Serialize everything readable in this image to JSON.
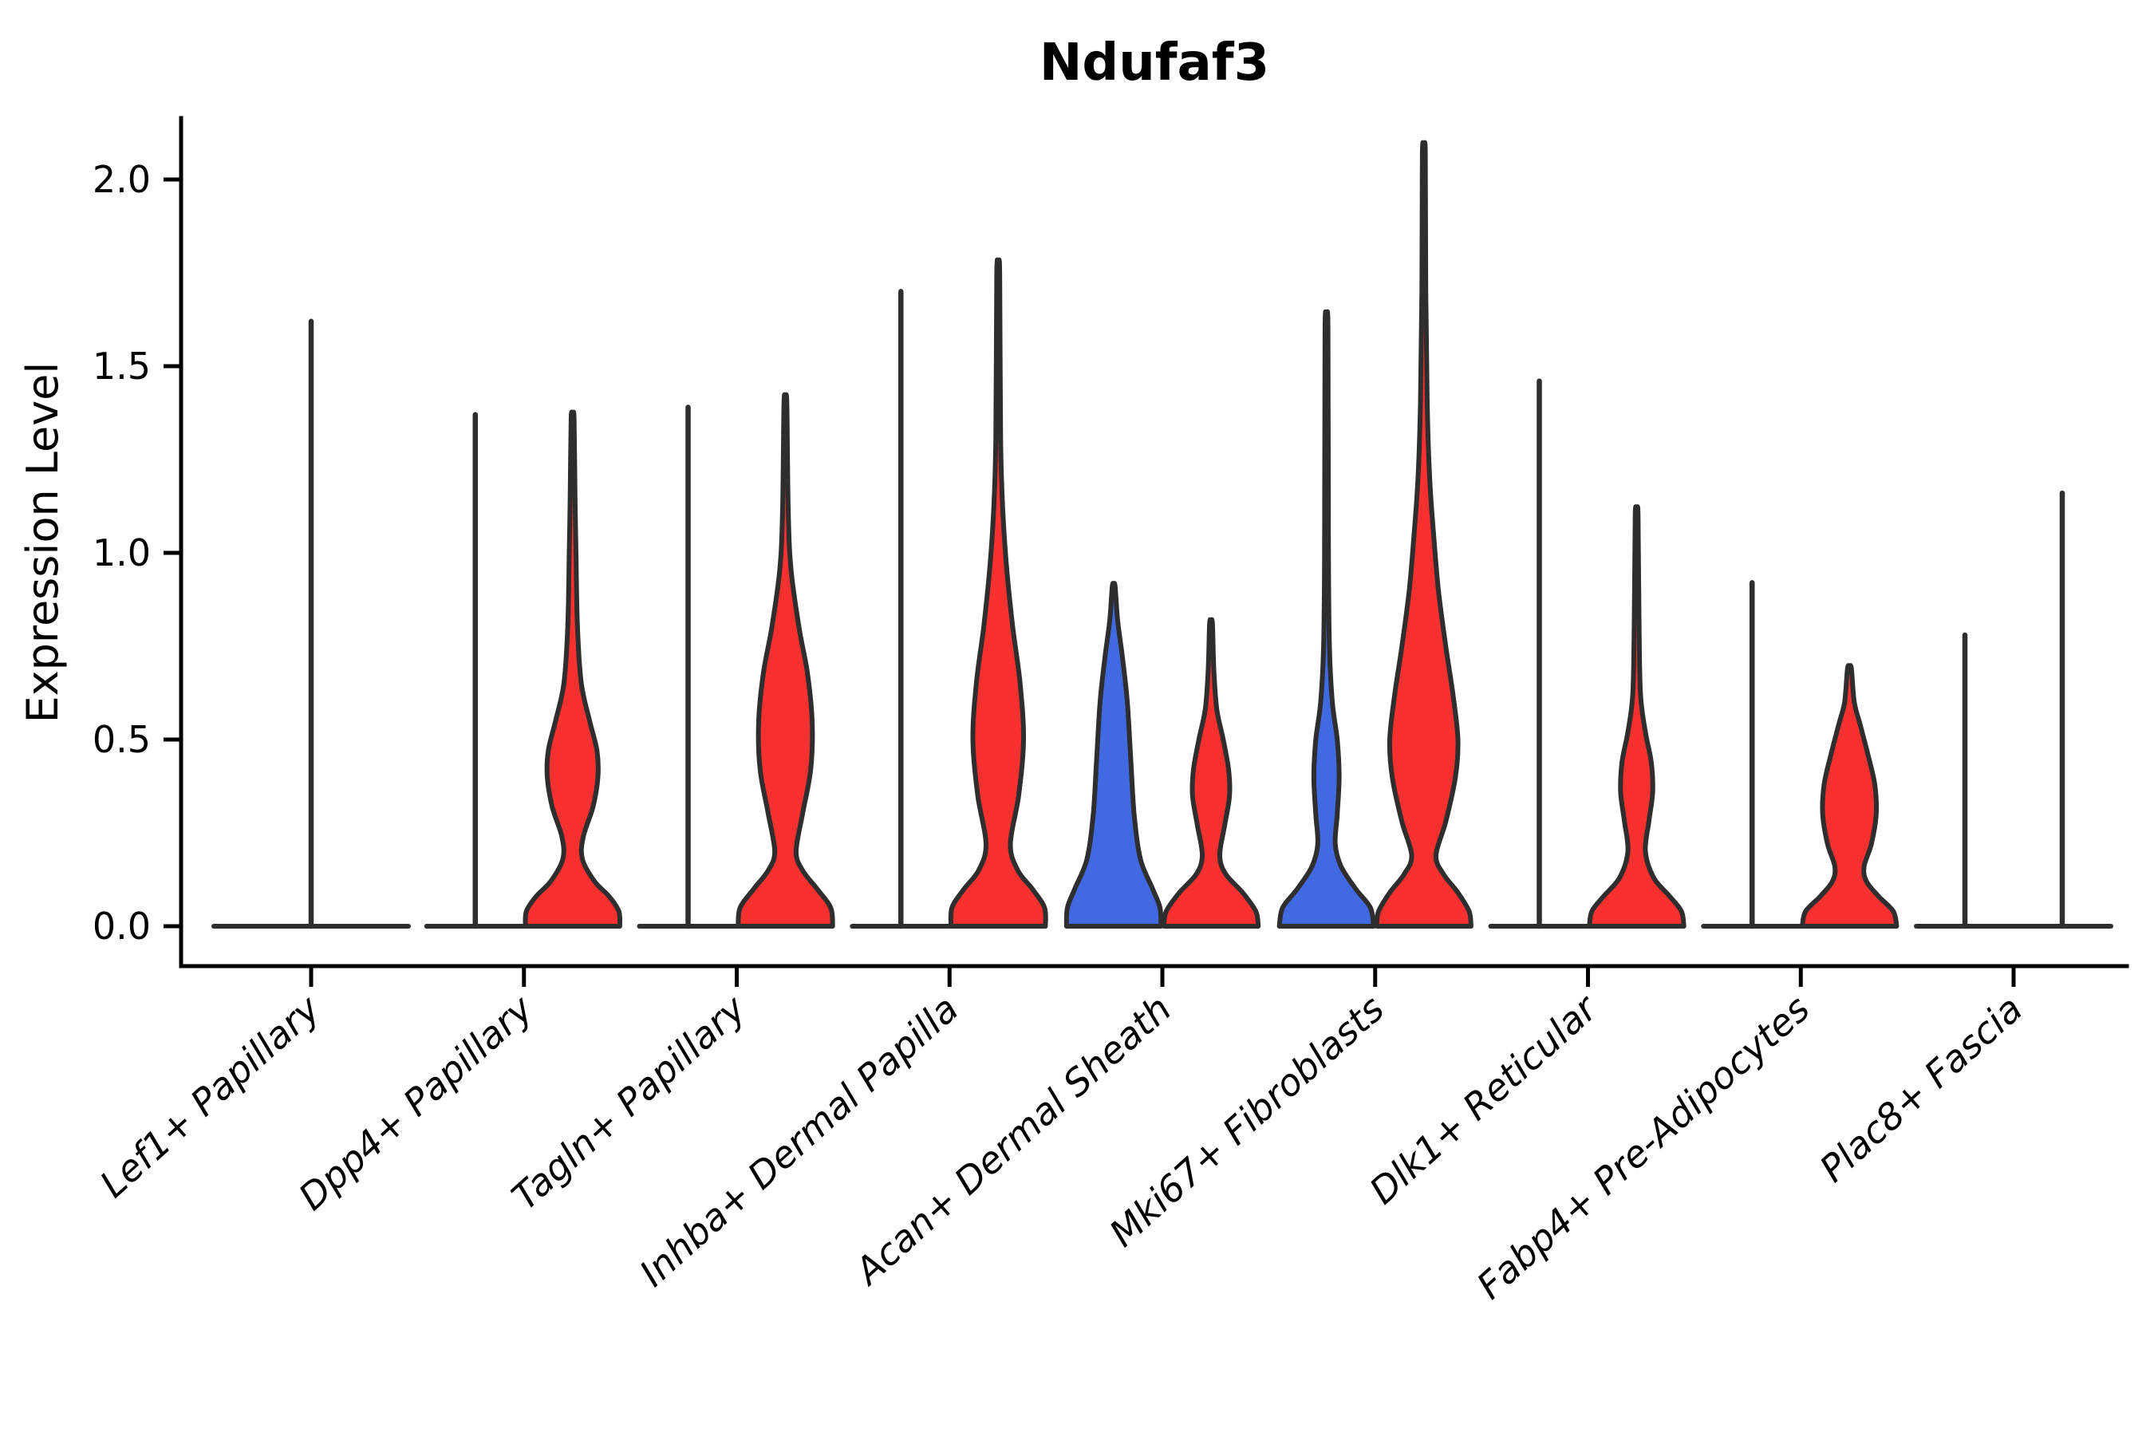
{
  "title": "Ndufaf3",
  "ylabel": "Expression Level",
  "colors": {
    "red": "#F93030",
    "blue": "#4169E1",
    "outline": "#2E2E2E",
    "axis": "#000000"
  },
  "chart_data": {
    "type": "violin",
    "title": "Ndufaf3",
    "xlabel": "",
    "ylabel": "Expression Level",
    "ylim": [
      -0.15,
      2.17
    ],
    "yticks": [
      0.0,
      0.5,
      1.0,
      1.5,
      2.0
    ],
    "ytick_labels": [
      "0.0",
      "0.5",
      "1.0",
      "1.5",
      "2.0"
    ],
    "grid": false,
    "legend": "none",
    "categories": [
      "Lef1+ Papillary",
      "Dpp4+ Papillary",
      "Tagln+ Papillary",
      "Inhba+ Dermal Papilla",
      "Acan+ Dermal Sheath",
      "Mki67+ Fibroblasts",
      "Dlk1+ Reticular",
      "Fabp4+ Pre-Adipocytes",
      "Plac8+ Fascia"
    ],
    "series_note": "Two dodged violins per category (no legend shown): left violin blue, right violin red. Violins drawn as a flat line at 0 with a thin vertical spike when nearly all values are 0. Lef1+ Papillary shows a single full-width violin centered on the tick.",
    "violins": [
      {
        "category": "Lef1+ Papillary",
        "side": "single",
        "group": "single",
        "color": "none",
        "max": 1.62,
        "kind": "spike"
      },
      {
        "category": "Dpp4+ Papillary",
        "side": "left",
        "group": "blue",
        "color": "none",
        "max": 1.37,
        "kind": "spike"
      },
      {
        "category": "Dpp4+ Papillary",
        "side": "right",
        "group": "red",
        "color": "red",
        "max": 1.36,
        "kind": "shape",
        "profile": [
          [
            0.0,
            0.97
          ],
          [
            0.04,
            0.95
          ],
          [
            0.08,
            0.75
          ],
          [
            0.12,
            0.45
          ],
          [
            0.18,
            0.2
          ],
          [
            0.24,
            0.22
          ],
          [
            0.32,
            0.42
          ],
          [
            0.4,
            0.52
          ],
          [
            0.47,
            0.5
          ],
          [
            0.55,
            0.35
          ],
          [
            0.65,
            0.18
          ],
          [
            0.8,
            0.1
          ],
          [
            1.0,
            0.07
          ],
          [
            1.15,
            0.05
          ],
          [
            1.36,
            0.03
          ]
        ]
      },
      {
        "category": "Tagln+ Papillary",
        "side": "left",
        "group": "blue",
        "color": "none",
        "max": 1.39,
        "kind": "spike"
      },
      {
        "category": "Tagln+ Papillary",
        "side": "right",
        "group": "red",
        "color": "red",
        "max": 1.4,
        "kind": "shape",
        "profile": [
          [
            0.0,
            0.97
          ],
          [
            0.05,
            0.93
          ],
          [
            0.1,
            0.65
          ],
          [
            0.15,
            0.35
          ],
          [
            0.2,
            0.22
          ],
          [
            0.3,
            0.35
          ],
          [
            0.42,
            0.52
          ],
          [
            0.55,
            0.55
          ],
          [
            0.68,
            0.45
          ],
          [
            0.8,
            0.28
          ],
          [
            0.95,
            0.12
          ],
          [
            1.1,
            0.06
          ],
          [
            1.4,
            0.03
          ]
        ]
      },
      {
        "category": "Inhba+ Dermal Papilla",
        "side": "left",
        "group": "blue",
        "color": "none",
        "max": 1.7,
        "kind": "spike"
      },
      {
        "category": "Inhba+ Dermal Papilla",
        "side": "right",
        "group": "red",
        "color": "red",
        "max": 1.75,
        "kind": "shape",
        "profile": [
          [
            0.0,
            0.97
          ],
          [
            0.05,
            0.95
          ],
          [
            0.1,
            0.7
          ],
          [
            0.15,
            0.4
          ],
          [
            0.22,
            0.25
          ],
          [
            0.35,
            0.42
          ],
          [
            0.5,
            0.52
          ],
          [
            0.65,
            0.45
          ],
          [
            0.8,
            0.3
          ],
          [
            0.95,
            0.18
          ],
          [
            1.1,
            0.1
          ],
          [
            1.3,
            0.05
          ],
          [
            1.75,
            0.03
          ]
        ]
      },
      {
        "category": "Acan+ Dermal Sheath",
        "side": "left",
        "group": "blue",
        "color": "blue",
        "max": 0.91,
        "kind": "shape",
        "profile": [
          [
            0.0,
            0.97
          ],
          [
            0.05,
            0.95
          ],
          [
            0.1,
            0.8
          ],
          [
            0.18,
            0.55
          ],
          [
            0.3,
            0.42
          ],
          [
            0.45,
            0.35
          ],
          [
            0.6,
            0.28
          ],
          [
            0.72,
            0.18
          ],
          [
            0.82,
            0.08
          ],
          [
            0.91,
            0.03
          ]
        ]
      },
      {
        "category": "Acan+ Dermal Sheath",
        "side": "right",
        "group": "red",
        "color": "red",
        "max": 0.81,
        "kind": "shape",
        "profile": [
          [
            0.0,
            0.97
          ],
          [
            0.04,
            0.92
          ],
          [
            0.09,
            0.65
          ],
          [
            0.14,
            0.3
          ],
          [
            0.19,
            0.18
          ],
          [
            0.27,
            0.28
          ],
          [
            0.35,
            0.38
          ],
          [
            0.42,
            0.36
          ],
          [
            0.5,
            0.25
          ],
          [
            0.58,
            0.12
          ],
          [
            0.68,
            0.06
          ],
          [
            0.81,
            0.03
          ]
        ]
      },
      {
        "category": "Mki67+ Fibroblasts",
        "side": "left",
        "group": "blue",
        "color": "blue",
        "max": 1.6,
        "kind": "shape",
        "profile": [
          [
            0.0,
            0.97
          ],
          [
            0.05,
            0.9
          ],
          [
            0.1,
            0.6
          ],
          [
            0.16,
            0.3
          ],
          [
            0.22,
            0.18
          ],
          [
            0.3,
            0.22
          ],
          [
            0.4,
            0.26
          ],
          [
            0.5,
            0.22
          ],
          [
            0.6,
            0.12
          ],
          [
            0.75,
            0.06
          ],
          [
            1.0,
            0.04
          ],
          [
            1.6,
            0.03
          ]
        ]
      },
      {
        "category": "Mki67+ Fibroblasts",
        "side": "right",
        "group": "red",
        "color": "red",
        "max": 2.07,
        "kind": "shape",
        "profile": [
          [
            0.0,
            0.97
          ],
          [
            0.04,
            0.93
          ],
          [
            0.09,
            0.7
          ],
          [
            0.14,
            0.4
          ],
          [
            0.19,
            0.25
          ],
          [
            0.28,
            0.45
          ],
          [
            0.4,
            0.65
          ],
          [
            0.5,
            0.7
          ],
          [
            0.62,
            0.6
          ],
          [
            0.75,
            0.45
          ],
          [
            0.9,
            0.3
          ],
          [
            1.05,
            0.2
          ],
          [
            1.2,
            0.12
          ],
          [
            1.4,
            0.07
          ],
          [
            1.7,
            0.04
          ],
          [
            2.07,
            0.03
          ]
        ]
      },
      {
        "category": "Dlk1+ Reticular",
        "side": "left",
        "group": "blue",
        "color": "none",
        "max": 1.46,
        "kind": "spike"
      },
      {
        "category": "Dlk1+ Reticular",
        "side": "right",
        "group": "red",
        "color": "red",
        "max": 1.1,
        "kind": "shape",
        "profile": [
          [
            0.0,
            0.97
          ],
          [
            0.04,
            0.92
          ],
          [
            0.08,
            0.68
          ],
          [
            0.13,
            0.35
          ],
          [
            0.2,
            0.18
          ],
          [
            0.28,
            0.25
          ],
          [
            0.36,
            0.33
          ],
          [
            0.44,
            0.3
          ],
          [
            0.52,
            0.18
          ],
          [
            0.62,
            0.08
          ],
          [
            0.8,
            0.05
          ],
          [
            1.1,
            0.03
          ]
        ]
      },
      {
        "category": "Fabp4+ Pre-Adipocytes",
        "side": "left",
        "group": "blue",
        "color": "none",
        "max": 0.92,
        "kind": "spike"
      },
      {
        "category": "Fabp4+ Pre-Adipocytes",
        "side": "right",
        "group": "red",
        "color": "red",
        "max": 0.69,
        "kind": "shape",
        "profile": [
          [
            0.0,
            0.97
          ],
          [
            0.04,
            0.9
          ],
          [
            0.08,
            0.6
          ],
          [
            0.12,
            0.35
          ],
          [
            0.16,
            0.3
          ],
          [
            0.22,
            0.45
          ],
          [
            0.3,
            0.55
          ],
          [
            0.38,
            0.52
          ],
          [
            0.46,
            0.38
          ],
          [
            0.54,
            0.22
          ],
          [
            0.6,
            0.1
          ],
          [
            0.69,
            0.04
          ]
        ]
      },
      {
        "category": "Plac8+ Fascia",
        "side": "left",
        "group": "blue",
        "color": "none",
        "max": 0.78,
        "kind": "spike"
      },
      {
        "category": "Plac8+ Fascia",
        "side": "right",
        "group": "red",
        "color": "none",
        "max": 1.16,
        "kind": "spike"
      }
    ]
  }
}
